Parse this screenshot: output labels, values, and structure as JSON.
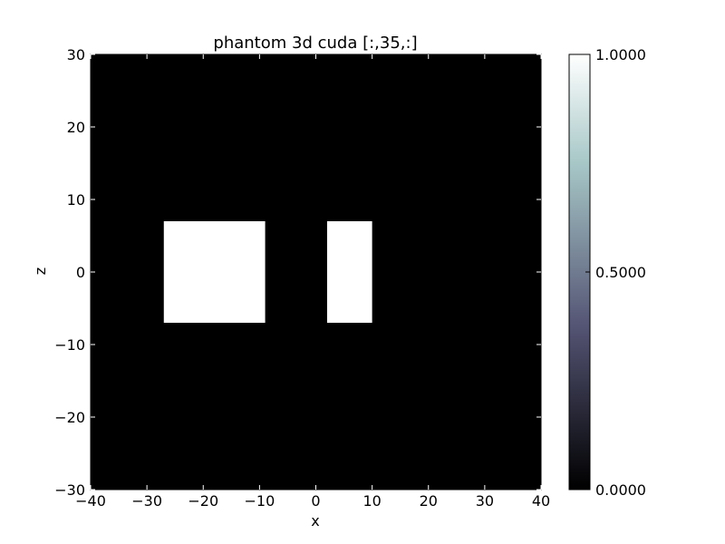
{
  "chart_data": {
    "type": "heatmap",
    "title": "phantom 3d cuda [:,35,:]",
    "xlabel": "x",
    "ylabel": "z",
    "xlim": [
      -40,
      40
    ],
    "ylim": [
      -30,
      30
    ],
    "xticks": [
      -40,
      -30,
      -20,
      -10,
      0,
      10,
      20,
      30,
      40
    ],
    "yticks": [
      -30,
      -20,
      -10,
      0,
      10,
      20,
      30
    ],
    "xtick_labels": [
      "−40",
      "−30",
      "−20",
      "−10",
      "0",
      "10",
      "20",
      "30",
      "40"
    ],
    "ytick_labels": [
      "−30",
      "−20",
      "−10",
      "0",
      "10",
      "20",
      "30"
    ],
    "background_value": 0.0,
    "regions": [
      {
        "x": [
          -27,
          -9
        ],
        "z": [
          -7,
          7
        ],
        "value": 1.0
      },
      {
        "x": [
          2,
          10
        ],
        "z": [
          -7,
          7
        ],
        "value": 1.0
      }
    ],
    "colorbar": {
      "colormap": "bone",
      "min": 0.0,
      "max": 1.0,
      "ticks": [
        0.0,
        0.5,
        1.0
      ],
      "tick_labels": [
        "0.0000",
        "0.5000",
        "1.0000"
      ]
    },
    "grid": false
  }
}
